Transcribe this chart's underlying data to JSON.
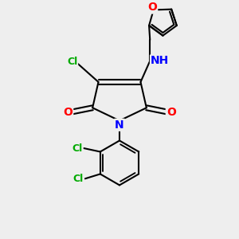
{
  "bg_color": "#eeeeee",
  "bond_color": "#000000",
  "bond_width": 1.5,
  "dbo": 0.12,
  "atom_colors": {
    "O": "#ff0000",
    "N": "#0000ff",
    "Cl": "#00aa00",
    "C": "#000000"
  },
  "font_size": 9,
  "fig_size": [
    3.0,
    3.0
  ],
  "dpi": 100
}
